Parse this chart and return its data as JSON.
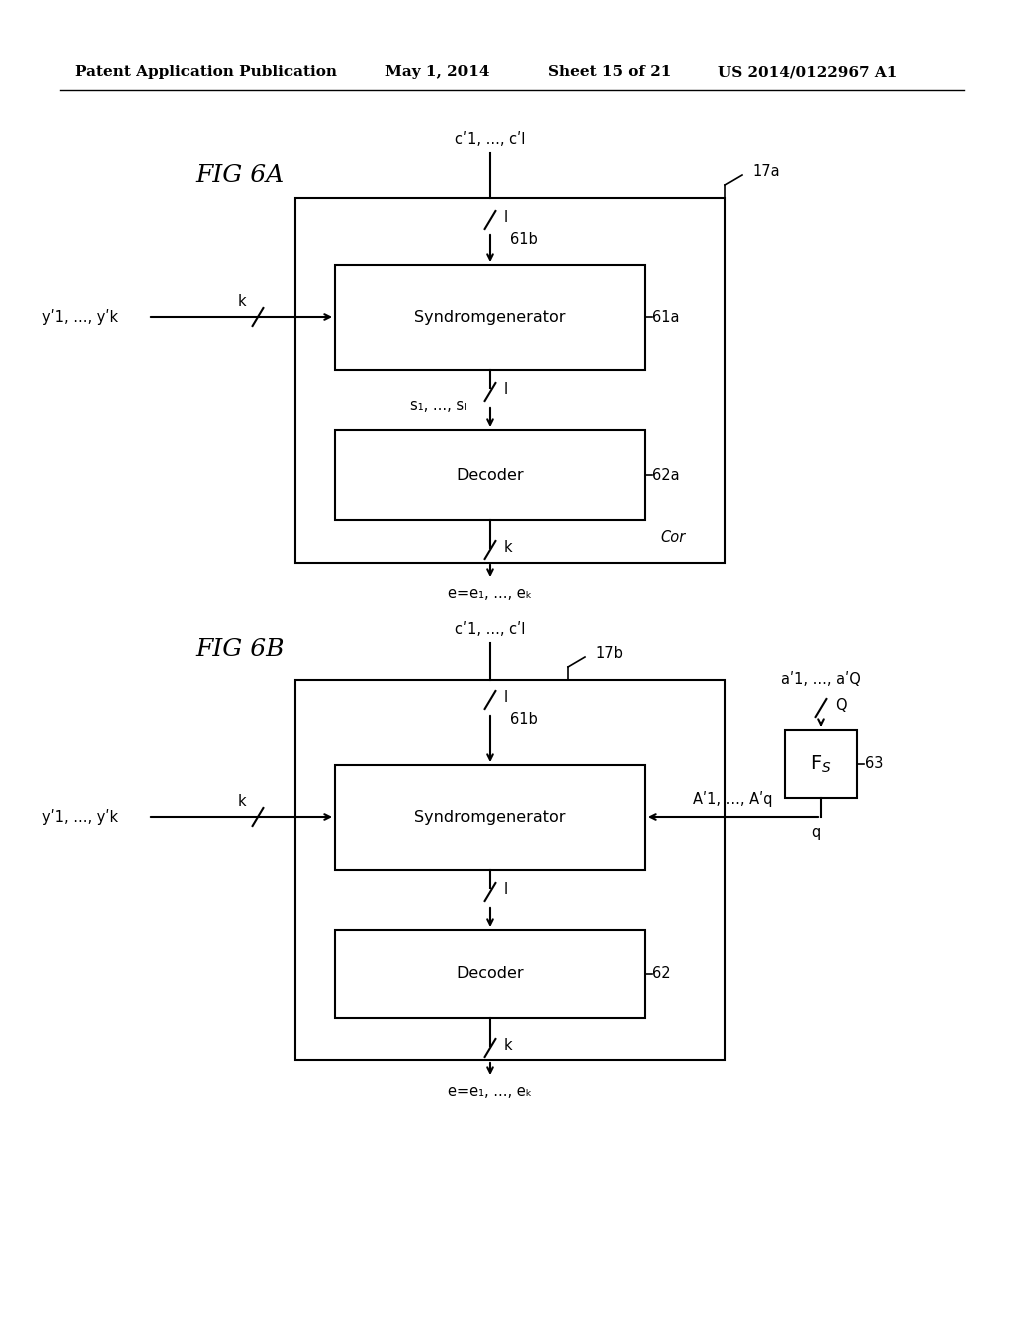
{
  "bg_color": "#ffffff",
  "header_text": "Patent Application Publication",
  "header_date": "May 1, 2014",
  "header_sheet": "Sheet 15 of 21",
  "header_patent": "US 2014/0122967 A1",
  "syndrom_label": "Syndromgenerator",
  "decoder_label": "Decoder",
  "fig6a_label": "FIG 6A",
  "fig6b_label": "FIG 6B",
  "label_17a": "17a",
  "label_61a": "61a",
  "label_61b_a": "61b",
  "label_62a": "62a",
  "label_Cor": "Cor",
  "label_17b": "17b",
  "label_61b_b": "61b",
  "label_62b": "62",
  "label_63": "63",
  "label_Fs": "F",
  "label_s_sub": "S"
}
